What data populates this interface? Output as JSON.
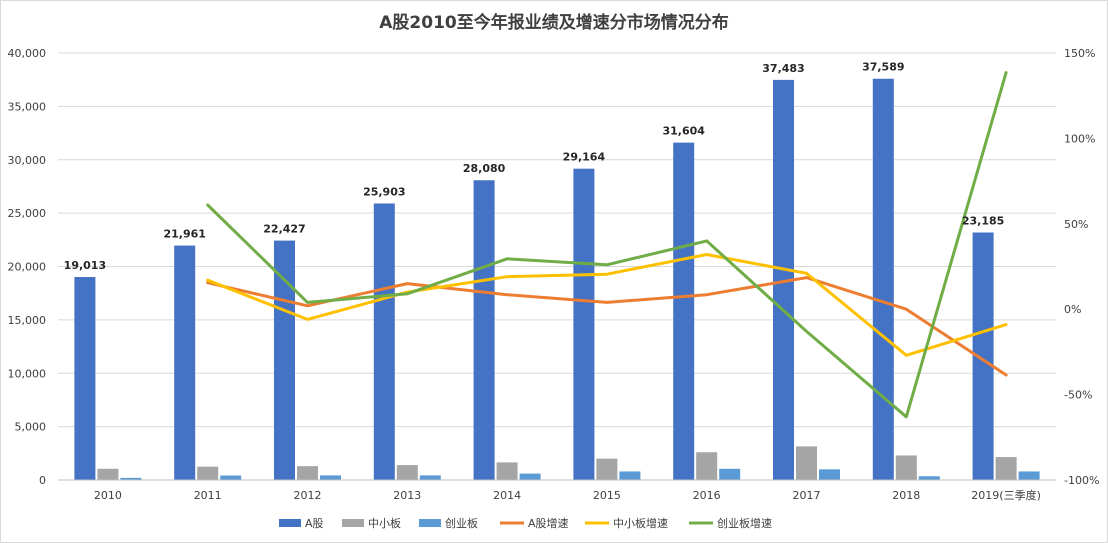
{
  "chart_data": {
    "type": "bar",
    "title": "A股2010至今年报业绩及增速分市场情况分布",
    "categories": [
      "2010",
      "2011",
      "2012",
      "2013",
      "2014",
      "2015",
      "2016",
      "2017",
      "2018",
      "2019(三季度)"
    ],
    "left_axis": {
      "ylim": [
        0,
        40000
      ],
      "ticks": [
        0,
        5000,
        10000,
        15000,
        20000,
        25000,
        30000,
        35000,
        40000
      ],
      "tick_labels": [
        "0",
        "5,000",
        "10,000",
        "15,000",
        "20,000",
        "25,000",
        "30,000",
        "35,000",
        "40,000"
      ]
    },
    "right_axis": {
      "ylim": [
        -100,
        150
      ],
      "ticks": [
        -100,
        -50,
        0,
        50,
        100,
        150
      ],
      "tick_labels": [
        "-100%",
        "-50%",
        "0%",
        "50%",
        "100%",
        "150%"
      ]
    },
    "bar_series": [
      {
        "name": "A股",
        "color": "#4472C4",
        "values": [
          19013,
          21961,
          22427,
          25903,
          28080,
          29164,
          31604,
          37483,
          37589,
          23185
        ],
        "labels": [
          "19,013",
          "21,961",
          "22,427",
          "25,903",
          "28,080",
          "29,164",
          "31,604",
          "37,483",
          "37,589",
          "23,185"
        ]
      },
      {
        "name": "中小板",
        "color": "#A5A5A5",
        "values": [
          1050,
          1250,
          1300,
          1400,
          1650,
          2000,
          2600,
          3150,
          2300,
          2150
        ]
      },
      {
        "name": "创业板",
        "color": "#5B9BD5",
        "values": [
          200,
          420,
          430,
          430,
          600,
          800,
          1050,
          1000,
          350,
          800
        ]
      }
    ],
    "line_series": [
      {
        "name": "A股增速",
        "color": "#ED7D31",
        "values": [
          null,
          15.5,
          2,
          15,
          8.5,
          4,
          8.5,
          18.5,
          0,
          -38.5
        ]
      },
      {
        "name": "中小板增速",
        "color": "#FFC000",
        "values": [
          null,
          17,
          -6,
          10,
          19,
          20.5,
          32,
          21,
          -27,
          -9
        ]
      },
      {
        "name": "创业板增速",
        "color": "#70AD47",
        "values": [
          null,
          61,
          4,
          9,
          29.5,
          26,
          40,
          -13,
          -63,
          138.5
        ]
      }
    ],
    "legend_position": "bottom",
    "grid": true
  }
}
